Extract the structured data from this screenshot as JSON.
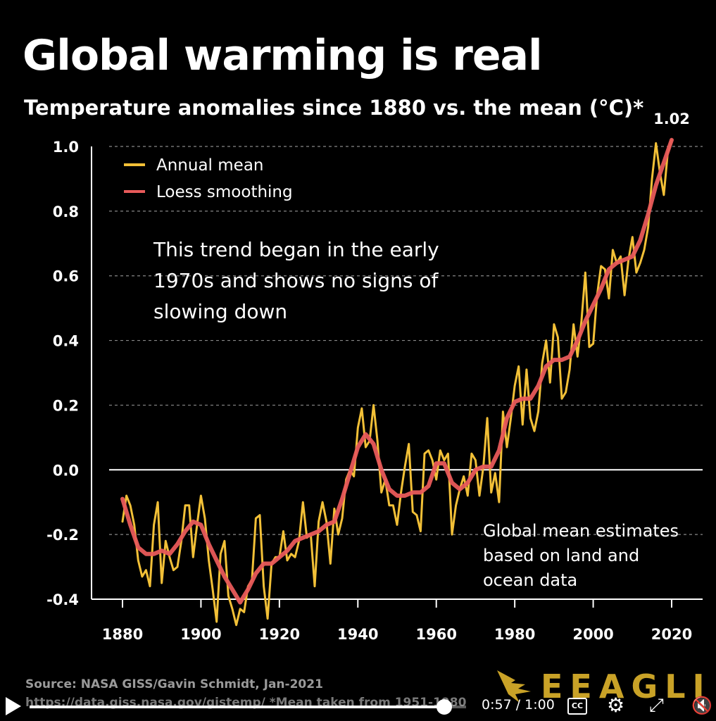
{
  "header": {
    "title": "Global warming is real",
    "subtitle": "Temperature anomalies since 1880 vs. the mean (°C)*"
  },
  "annotations": {
    "trend_lines": [
      "This trend began in the early",
      "1970s and shows no signs of",
      "slowing down"
    ],
    "data_note_lines": [
      "Global mean estimates",
      "based on land and",
      "ocean data"
    ],
    "last_value_label": "1.02"
  },
  "footer": {
    "source": "Source: NASA GISS/Gavin Schmidt, Jan-2021",
    "url": "https://data.giss.nasa.gov/gistemp/ *Mean taken from 1951-1980"
  },
  "logo": {
    "text": "EEAGLI",
    "icon": "eagle-icon",
    "color": "#c9a227"
  },
  "video_controls": {
    "time": "0:57 / 1:00",
    "progress": 0.95,
    "cc_label": "CC",
    "icons": [
      "play-icon",
      "cc-icon",
      "gear-icon",
      "fullscreen-icon",
      "mute-icon"
    ]
  },
  "chart_data": {
    "type": "line",
    "title": "Global warming is real",
    "subtitle": "Temperature anomalies since 1880 vs. the mean (°C)*",
    "xlabel": "",
    "ylabel": "",
    "xlim": [
      1877,
      2027
    ],
    "ylim": [
      -0.4,
      1.0
    ],
    "xticks": [
      1880,
      1900,
      1920,
      1940,
      1960,
      1980,
      2000,
      2020
    ],
    "yticks": [
      -0.4,
      -0.2,
      0.0,
      0.2,
      0.4,
      0.6,
      0.8,
      1.0
    ],
    "ytick_labels": [
      "-0.4",
      "-0.2",
      "0.0",
      "0.2",
      "0.4",
      "0.6",
      "0.8",
      "1.0"
    ],
    "grid": "horizontal-dashed",
    "legend_position": "top-left",
    "colors": {
      "annual": "#f2c037",
      "loess": "#e85a5a",
      "grid": "#888888",
      "zero_line": "#ffffff"
    },
    "series": [
      {
        "name": "Annual mean",
        "color": "#f2c037",
        "x": [
          1880,
          1881,
          1882,
          1883,
          1884,
          1885,
          1886,
          1887,
          1888,
          1889,
          1890,
          1891,
          1892,
          1893,
          1894,
          1895,
          1896,
          1897,
          1898,
          1899,
          1900,
          1901,
          1902,
          1903,
          1904,
          1905,
          1906,
          1907,
          1908,
          1909,
          1910,
          1911,
          1912,
          1913,
          1914,
          1915,
          1916,
          1917,
          1918,
          1919,
          1920,
          1921,
          1922,
          1923,
          1924,
          1925,
          1926,
          1927,
          1928,
          1929,
          1930,
          1931,
          1932,
          1933,
          1934,
          1935,
          1936,
          1937,
          1938,
          1939,
          1940,
          1941,
          1942,
          1943,
          1944,
          1945,
          1946,
          1947,
          1948,
          1949,
          1950,
          1951,
          1952,
          1953,
          1954,
          1955,
          1956,
          1957,
          1958,
          1959,
          1960,
          1961,
          1962,
          1963,
          1964,
          1965,
          1966,
          1967,
          1968,
          1969,
          1970,
          1971,
          1972,
          1973,
          1974,
          1975,
          1976,
          1977,
          1978,
          1979,
          1980,
          1981,
          1982,
          1983,
          1984,
          1985,
          1986,
          1987,
          1988,
          1989,
          1990,
          1991,
          1992,
          1993,
          1994,
          1995,
          1996,
          1997,
          1998,
          1999,
          2000,
          2001,
          2002,
          2003,
          2004,
          2005,
          2006,
          2007,
          2008,
          2009,
          2010,
          2011,
          2012,
          2013,
          2014,
          2015,
          2016,
          2017,
          2018,
          2019,
          2020
        ],
        "values": [
          -0.16,
          -0.08,
          -0.11,
          -0.17,
          -0.28,
          -0.33,
          -0.31,
          -0.36,
          -0.17,
          -0.1,
          -0.35,
          -0.22,
          -0.27,
          -0.31,
          -0.3,
          -0.22,
          -0.11,
          -0.11,
          -0.27,
          -0.17,
          -0.08,
          -0.15,
          -0.28,
          -0.37,
          -0.47,
          -0.26,
          -0.22,
          -0.39,
          -0.43,
          -0.48,
          -0.43,
          -0.44,
          -0.36,
          -0.34,
          -0.15,
          -0.14,
          -0.36,
          -0.46,
          -0.29,
          -0.27,
          -0.27,
          -0.19,
          -0.28,
          -0.26,
          -0.27,
          -0.22,
          -0.1,
          -0.21,
          -0.2,
          -0.36,
          -0.16,
          -0.1,
          -0.16,
          -0.29,
          -0.12,
          -0.2,
          -0.15,
          -0.03,
          -0.0,
          -0.02,
          0.13,
          0.19,
          0.07,
          0.09,
          0.2,
          0.09,
          -0.07,
          -0.03,
          -0.11,
          -0.11,
          -0.17,
          -0.07,
          0.01,
          0.08,
          -0.13,
          -0.14,
          -0.19,
          0.05,
          0.06,
          0.03,
          -0.03,
          0.06,
          0.03,
          0.05,
          -0.2,
          -0.11,
          -0.06,
          -0.02,
          -0.08,
          0.05,
          0.03,
          -0.08,
          0.01,
          0.16,
          -0.07,
          -0.01,
          -0.1,
          0.18,
          0.07,
          0.16,
          0.26,
          0.32,
          0.14,
          0.31,
          0.16,
          0.12,
          0.18,
          0.33,
          0.4,
          0.27,
          0.45,
          0.41,
          0.22,
          0.24,
          0.31,
          0.45,
          0.35,
          0.46,
          0.61,
          0.38,
          0.39,
          0.54,
          0.63,
          0.62,
          0.53,
          0.68,
          0.64,
          0.66,
          0.54,
          0.65,
          0.72,
          0.61,
          0.64,
          0.68,
          0.75,
          0.9,
          1.01,
          0.92,
          0.85,
          0.98,
          1.02
        ]
      },
      {
        "name": "Loess smoothing",
        "color": "#e85a5a",
        "x": [
          1880,
          1882,
          1884,
          1886,
          1888,
          1890,
          1892,
          1894,
          1896,
          1898,
          1900,
          1902,
          1904,
          1906,
          1908,
          1910,
          1912,
          1914,
          1916,
          1918,
          1920,
          1922,
          1924,
          1926,
          1928,
          1930,
          1932,
          1934,
          1936,
          1938,
          1940,
          1942,
          1944,
          1946,
          1948,
          1950,
          1952,
          1954,
          1956,
          1958,
          1960,
          1962,
          1964,
          1966,
          1968,
          1970,
          1972,
          1974,
          1976,
          1978,
          1980,
          1982,
          1984,
          1986,
          1988,
          1990,
          1992,
          1994,
          1996,
          1998,
          2000,
          2002,
          2004,
          2006,
          2008,
          2010,
          2012,
          2014,
          2016,
          2018,
          2020
        ],
        "values": [
          -0.09,
          -0.17,
          -0.24,
          -0.26,
          -0.26,
          -0.25,
          -0.26,
          -0.23,
          -0.19,
          -0.16,
          -0.17,
          -0.23,
          -0.28,
          -0.33,
          -0.37,
          -0.41,
          -0.37,
          -0.32,
          -0.29,
          -0.29,
          -0.27,
          -0.25,
          -0.22,
          -0.21,
          -0.2,
          -0.19,
          -0.17,
          -0.16,
          -0.09,
          -0.01,
          0.07,
          0.11,
          0.08,
          0.0,
          -0.06,
          -0.08,
          -0.08,
          -0.07,
          -0.07,
          -0.05,
          0.02,
          0.02,
          -0.04,
          -0.06,
          -0.04,
          0.0,
          0.01,
          0.01,
          0.06,
          0.16,
          0.21,
          0.22,
          0.22,
          0.26,
          0.32,
          0.34,
          0.34,
          0.35,
          0.4,
          0.46,
          0.51,
          0.56,
          0.62,
          0.64,
          0.65,
          0.66,
          0.71,
          0.79,
          0.88,
          0.95,
          1.02
        ]
      }
    ]
  }
}
